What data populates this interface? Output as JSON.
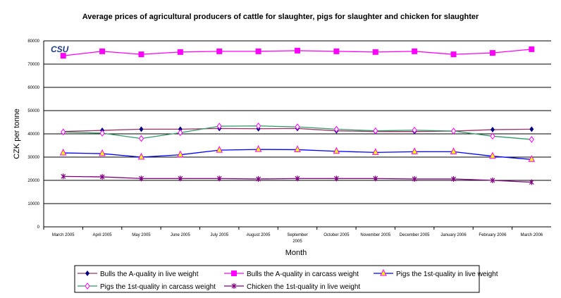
{
  "chart_data": {
    "type": "line",
    "title": "Average prices of agricultural producers of cattle for slaughter, pigs for slaughter and chicken for slaughter",
    "xlabel": "Month",
    "ylabel": "CZK per tonne",
    "logo": "CSU",
    "ylim": [
      0,
      80000
    ],
    "yticks": [
      0,
      10000,
      20000,
      30000,
      40000,
      50000,
      60000,
      70000,
      80000
    ],
    "grid": true,
    "legend_position": "bottom",
    "categories": [
      "March 2005",
      "April 2005",
      "May 2005",
      "June 2005",
      "July 2005",
      "August 2005",
      "September 2005",
      "October 2005",
      "November 2005",
      "December 2005",
      "January 2006",
      "February 2006",
      "March 2006"
    ],
    "series": [
      {
        "name": "Bulls the A-quality in live weight",
        "color": "#000080",
        "line_color": "#993366",
        "marker": "diamond",
        "values": [
          41000,
          41500,
          42000,
          42000,
          42300,
          42200,
          42300,
          41300,
          41000,
          41000,
          41200,
          41800,
          42000
        ]
      },
      {
        "name": "Bulls the A-quality in carcass weight",
        "color": "#FF00FF",
        "line_color": "#FF00FF",
        "marker": "square",
        "values": [
          73600,
          75500,
          74200,
          75200,
          75500,
          75500,
          75800,
          75500,
          75200,
          75500,
          74200,
          74800,
          76400
        ]
      },
      {
        "name": "Pigs the 1st-quality in live weight",
        "color": "#FFFF00",
        "line_color": "#0000FF",
        "marker": "triangle",
        "values": [
          31800,
          31500,
          30000,
          31000,
          33000,
          33300,
          33200,
          32500,
          32000,
          32300,
          32300,
          30400,
          29000
        ]
      },
      {
        "name": "Pigs the 1st-quality in carcass weight",
        "color": "#FF00FF",
        "line_color": "#339966",
        "marker": "open-diamond",
        "values": [
          40800,
          40300,
          38000,
          40500,
          43300,
          43400,
          43000,
          42000,
          41300,
          41600,
          41200,
          39000,
          37600
        ]
      },
      {
        "name": "Chicken the 1st-quality in live weight",
        "color": "#800080",
        "line_color": "#800080",
        "marker": "asterisk",
        "values": [
          21700,
          21500,
          20800,
          20800,
          20800,
          20600,
          20800,
          20800,
          20800,
          20600,
          20600,
          20000,
          19200
        ]
      }
    ]
  }
}
